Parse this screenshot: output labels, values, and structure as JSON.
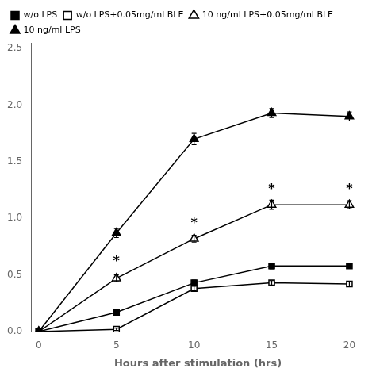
{
  "chart_data": {
    "type": "line",
    "x_label": "Hours after stimulation (hrs)",
    "x": [
      0,
      5,
      10,
      15,
      20
    ],
    "series": [
      {
        "name": "w/o LPS",
        "color": "#000000",
        "marker": "square",
        "line_style": "solid",
        "values": [
          0.0,
          0.17,
          0.43,
          0.58,
          0.58
        ],
        "yerr": [
          0.0,
          0.015,
          0.025,
          0.025,
          0.02
        ]
      },
      {
        "name": "w/o LPS+0.05mg/ml BLE",
        "color": "#000000",
        "marker": "square-open",
        "line_style": "solid",
        "values": [
          0.0,
          0.02,
          0.38,
          0.43,
          0.42
        ],
        "yerr": [
          0.0,
          0.01,
          0.02,
          0.02,
          0.02
        ]
      },
      {
        "name": "10 ng/ml LPS+0.05mg/ml BLE",
        "color": "#000000",
        "marker": "triangle-open",
        "line_style": "solid",
        "values": [
          0.0,
          0.47,
          0.82,
          1.12,
          1.12
        ],
        "yerr": [
          0.0,
          0.03,
          0.03,
          0.04,
          0.035
        ]
      },
      {
        "name": "10 ng/ml LPS",
        "color": "#000000",
        "marker": "triangle",
        "line_style": "solid",
        "values": [
          0.0,
          0.87,
          1.7,
          1.93,
          1.9
        ],
        "yerr": [
          0.0,
          0.04,
          0.05,
          0.04,
          0.04
        ]
      }
    ],
    "annotations": [
      {
        "text": "*",
        "x": 5,
        "y": 0.56
      },
      {
        "text": "*",
        "x": 10,
        "y": 0.9
      },
      {
        "text": "*",
        "x": 15,
        "y": 1.2
      },
      {
        "text": "*",
        "x": 20,
        "y": 1.2
      }
    ],
    "xlim": [
      -0.5,
      21
    ],
    "xticks": [
      0,
      5,
      10,
      15,
      20
    ],
    "ylim": [
      0.0,
      2.55
    ],
    "yticks": [
      {
        "value": 0.0,
        "label": "0.0"
      },
      0.5,
      {
        "value": 1.0,
        "label": "1.0"
      },
      1.5,
      {
        "value": 2.0,
        "label": "2.0"
      },
      2.5
    ],
    "grid": false,
    "legend": "upper left"
  }
}
